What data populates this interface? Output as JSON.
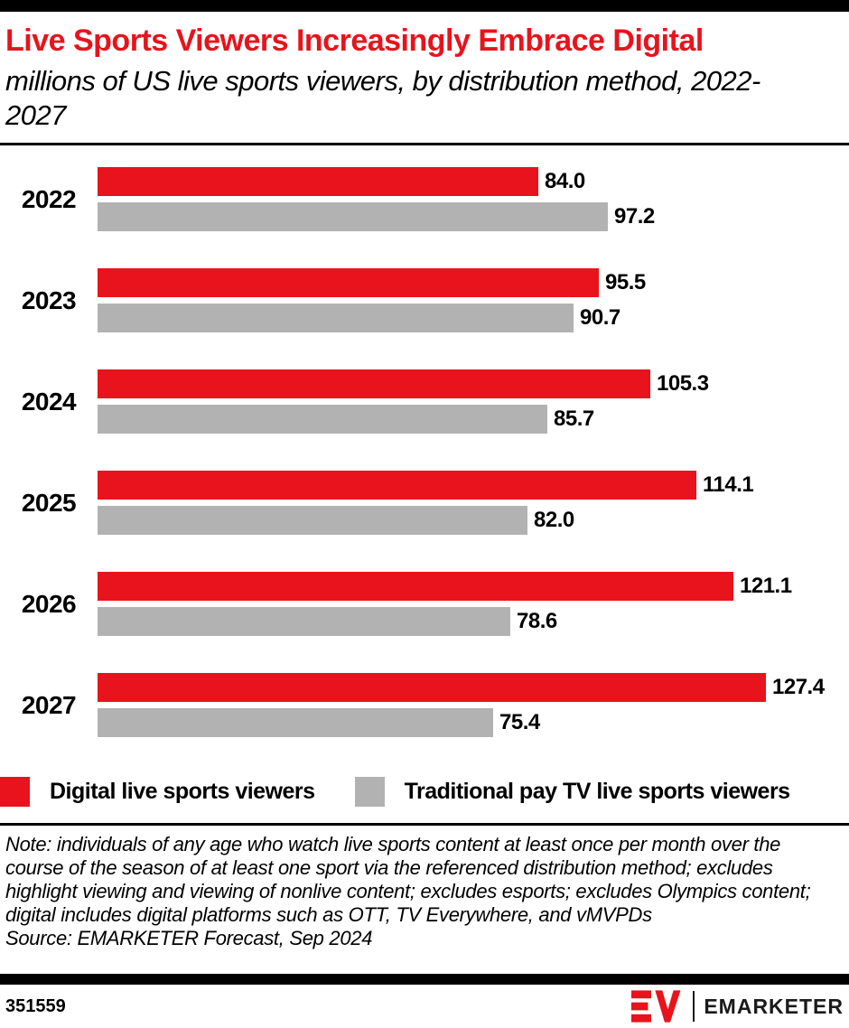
{
  "header": {
    "title": "Live Sports Viewers Increasingly Embrace Digital",
    "subtitle": "millions of US live sports viewers, by distribution method, 2022-2027"
  },
  "chart_data": {
    "type": "bar",
    "orientation": "horizontal",
    "title": "Live Sports Viewers Increasingly Embrace Digital",
    "subtitle": "millions of US live sports viewers, by distribution method, 2022-2027",
    "unit": "millions of viewers",
    "categories": [
      "2022",
      "2023",
      "2024",
      "2025",
      "2026",
      "2027"
    ],
    "series": [
      {
        "name": "Digital live sports viewers",
        "color": "#e8131c",
        "values": [
          84.0,
          95.5,
          105.3,
          114.1,
          121.1,
          127.4
        ]
      },
      {
        "name": "Traditional pay TV live sports viewers",
        "color": "#b2b2b2",
        "values": [
          97.2,
          90.7,
          85.7,
          82.0,
          78.6,
          75.4
        ]
      }
    ],
    "value_labels": true,
    "value_label_format": "one_decimal",
    "axis_range": [
      0,
      130
    ],
    "grid": false,
    "legend_position": "bottom"
  },
  "legend": {
    "items": [
      {
        "label": "Digital live sports viewers",
        "color": "#e8131c"
      },
      {
        "label": "Traditional pay TV live sports viewers",
        "color": "#b2b2b2"
      }
    ]
  },
  "footnote": {
    "note": "Note: individuals of any age who watch live sports content at least once per month over the course of the season of at least one sport via the referenced distribution method; excludes highlight viewing and viewing of nonlive content; excludes esports; excludes Olympics content; digital includes digital platforms such as OTT, TV Everywhere, and vMVPDs",
    "source": "Source: EMARKETER Forecast, Sep 2024"
  },
  "footer": {
    "chart_id": "351559",
    "brand": "EMARKETER"
  },
  "colors": {
    "accent_red": "#e8131c",
    "bar_gray": "#b2b2b2",
    "bar_black": "#000000"
  }
}
